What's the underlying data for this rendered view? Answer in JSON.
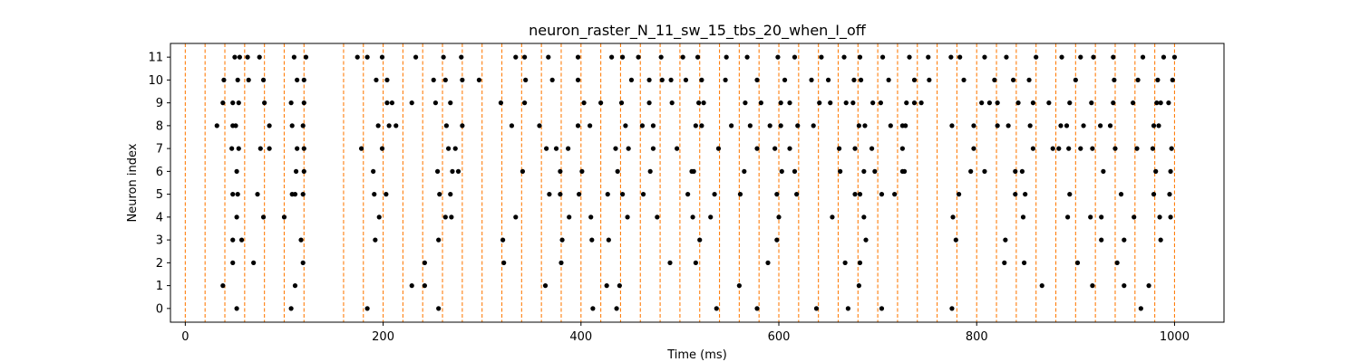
{
  "chart_data": {
    "type": "scatter",
    "title": "neuron_raster_N_11_sw_15_tbs_20_when_I_off",
    "xlabel": "Time (ms)",
    "ylabel": "Neuron index",
    "xlim": [
      -15,
      1050
    ],
    "ylim": [
      -0.6,
      11.6
    ],
    "xticks": [
      0,
      200,
      400,
      600,
      800,
      1000
    ],
    "yticks": [
      0,
      1,
      2,
      3,
      4,
      5,
      6,
      7,
      8,
      9,
      10,
      11
    ],
    "grid": false,
    "marker_color": "#000000",
    "vline_color": "#ff7f0e",
    "vline_style": "dashed",
    "vlines_x": [
      0,
      20,
      40,
      60,
      80,
      100,
      120,
      160,
      180,
      200,
      220,
      240,
      260,
      280,
      300,
      320,
      340,
      360,
      380,
      400,
      420,
      440,
      460,
      480,
      500,
      520,
      540,
      560,
      580,
      600,
      620,
      640,
      660,
      680,
      700,
      720,
      740,
      760,
      780,
      800,
      820,
      840,
      860,
      880,
      900,
      920,
      940,
      960,
      980,
      1000
    ],
    "spikes": [
      {
        "neuron": 0,
        "times": [
          52,
          107,
          184,
          256,
          412,
          436,
          537,
          578,
          638,
          670,
          704,
          775,
          966
        ]
      },
      {
        "neuron": 1,
        "times": [
          38,
          111,
          229,
          242,
          364,
          426,
          439,
          560,
          681,
          866,
          917,
          949,
          974
        ]
      },
      {
        "neuron": 2,
        "times": [
          48,
          69,
          119,
          242,
          322,
          380,
          490,
          516,
          589,
          667,
          682,
          828,
          848,
          902,
          942
        ]
      },
      {
        "neuron": 3,
        "times": [
          48,
          57,
          117,
          192,
          256,
          321,
          381,
          411,
          428,
          520,
          598,
          688,
          779,
          829,
          926,
          949,
          986
        ]
      },
      {
        "neuron": 4,
        "times": [
          52,
          79,
          100,
          196,
          263,
          269,
          334,
          388,
          410,
          447,
          477,
          513,
          531,
          600,
          654,
          686,
          776,
          847,
          892,
          915,
          926,
          959,
          985,
          996
        ]
      },
      {
        "neuron": 5,
        "times": [
          48,
          53,
          73,
          108,
          111,
          119,
          191,
          203,
          257,
          268,
          368,
          379,
          398,
          427,
          442,
          463,
          508,
          535,
          561,
          598,
          618,
          677,
          682,
          704,
          717,
          782,
          839,
          849,
          894,
          946,
          979,
          995
        ]
      },
      {
        "neuron": 6,
        "times": [
          52,
          112,
          120,
          190,
          255,
          270,
          276,
          341,
          379,
          401,
          437,
          470,
          512,
          514,
          565,
          603,
          616,
          662,
          686,
          697,
          725,
          727,
          794,
          808,
          839,
          846,
          928,
          981,
          996
        ]
      },
      {
        "neuron": 7,
        "times": [
          47,
          54,
          76,
          85,
          113,
          120,
          178,
          199,
          266,
          273,
          365,
          375,
          387,
          435,
          448,
          473,
          497,
          539,
          578,
          596,
          611,
          661,
          677,
          694,
          725,
          797,
          857,
          877,
          883,
          893,
          905,
          917,
          940,
          962,
          978,
          997
        ]
      },
      {
        "neuron": 8,
        "times": [
          32,
          48,
          51,
          85,
          108,
          119,
          195,
          206,
          213,
          264,
          280,
          330,
          358,
          397,
          409,
          445,
          462,
          473,
          516,
          522,
          552,
          571,
          591,
          602,
          619,
          635,
          681,
          687,
          713,
          725,
          728,
          775,
          797,
          821,
          832,
          854,
          885,
          891,
          908,
          925,
          935,
          979,
          984
        ]
      },
      {
        "neuron": 9,
        "times": [
          38,
          48,
          54,
          80,
          107,
          120,
          204,
          209,
          229,
          253,
          268,
          319,
          343,
          403,
          420,
          441,
          469,
          492,
          519,
          524,
          566,
          582,
          602,
          611,
          641,
          652,
          668,
          675,
          695,
          703,
          729,
          737,
          744,
          805,
          813,
          821,
          842,
          857,
          873,
          894,
          916,
          938,
          958,
          982,
          986,
          994
        ]
      },
      {
        "neuron": 10,
        "times": [
          39,
          53,
          64,
          79,
          113,
          120,
          193,
          204,
          251,
          263,
          280,
          297,
          344,
          371,
          397,
          451,
          469,
          482,
          491,
          506,
          522,
          546,
          578,
          606,
          633,
          650,
          676,
          683,
          711,
          737,
          752,
          787,
          818,
          837,
          853,
          900,
          939,
          963,
          983,
          998
        ]
      },
      {
        "neuron": 11,
        "times": [
          50,
          55,
          63,
          75,
          110,
          122,
          174,
          184,
          199,
          233,
          261,
          279,
          334,
          343,
          367,
          397,
          431,
          442,
          458,
          481,
          503,
          518,
          547,
          568,
          599,
          616,
          643,
          666,
          682,
          705,
          732,
          751,
          774,
          783,
          808,
          830,
          860,
          886,
          905,
          918,
          938,
          968,
          989,
          1000
        ]
      }
    ]
  }
}
